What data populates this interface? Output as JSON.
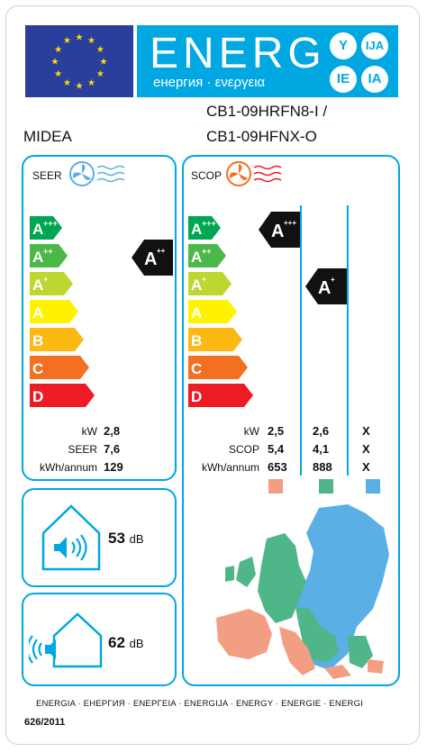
{
  "energy_banner": {
    "title": "ENERG",
    "subtitle": "енергия · ενεργεια",
    "langs": [
      "Y",
      "IJA",
      "IE",
      "IA"
    ]
  },
  "supplier": "MIDEA",
  "model_lines": [
    "CB1-09HRFN8-I /",
    "CB1-09HFNX-O"
  ],
  "scale_letters": [
    "A",
    "A",
    "A",
    "A",
    "B",
    "C",
    "D"
  ],
  "scale_sups": [
    "+++",
    "++",
    "+",
    "",
    "",
    "",
    ""
  ],
  "colors": {
    "classes": [
      "#00a651",
      "#4cb947",
      "#bed630",
      "#fff200",
      "#fdb913",
      "#f36f21",
      "#ed1c24"
    ],
    "accent": "#00a7e1",
    "eu_blue": "#2a3f9c",
    "star": "#ffdd00",
    "zone_warm": "#f29e83",
    "zone_avg": "#4fb68a",
    "zone_cold": "#5ab0e4"
  },
  "cooling": {
    "heading": "SEER",
    "rating_letter": "A",
    "rating_sup": "++",
    "labels": [
      "kW",
      "SEER",
      "kWh/annum"
    ],
    "values": [
      "2,8",
      "7,6",
      "129"
    ]
  },
  "heating": {
    "heading": "SCOP",
    "rating1_letter": "A",
    "rating1_sup": "+++",
    "rating2_letter": "A",
    "rating2_sup": "+",
    "labels": [
      "kW",
      "SCOP",
      "kWh/annum"
    ],
    "col1": [
      "2,5",
      "5,4",
      "653"
    ],
    "col2": [
      "2,6",
      "4,1",
      "888"
    ],
    "col3": [
      "X",
      "X",
      "X"
    ]
  },
  "noise_indoor": {
    "value": "53",
    "unit": "dB"
  },
  "noise_outdoor": {
    "value": "62",
    "unit": "dB"
  },
  "footer_text": "ENERGIA · ЕНЕРГИЯ · ΕΝΕΡΓΕΙΑ · ENERGIJA · ENERGY · ENERGIE · ENERGI",
  "regulation": "626/2011"
}
